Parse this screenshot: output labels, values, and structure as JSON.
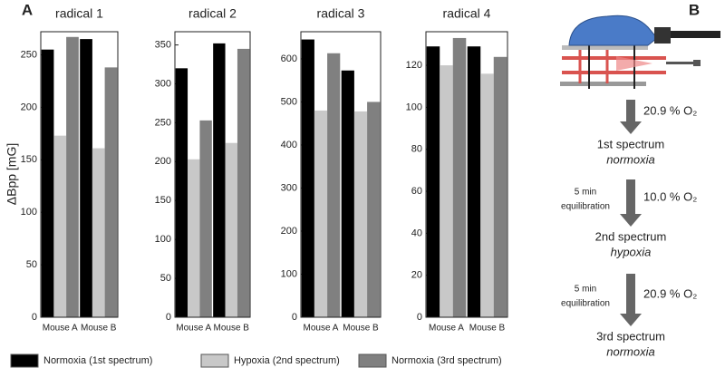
{
  "panel_labels": [
    "A",
    "B"
  ],
  "legend_note": null,
  "chart_data": [
    {
      "type": "bar",
      "title": "radical 1",
      "ylabel": "ΔBpp [mG]",
      "categories": [
        "Mouse A",
        "Mouse B"
      ],
      "series": [
        {
          "name": "Normoxia (1st spectrum)",
          "color": "#000000",
          "values": [
            255,
            265
          ]
        },
        {
          "name": "Hypoxia (2nd spectrum)",
          "color": "#c8c8c8",
          "values": [
            173,
            161
          ]
        },
        {
          "name": "Normoxia (3rd spectrum)",
          "color": "#808080",
          "values": [
            267,
            238
          ]
        }
      ],
      "ylim": [
        0,
        272
      ],
      "yticks": [
        0,
        50,
        100,
        150,
        200,
        250
      ]
    },
    {
      "type": "bar",
      "title": "radical 2",
      "categories": [
        "Mouse A",
        "Mouse B"
      ],
      "series": [
        {
          "color": "#000000",
          "values": [
            320,
            352
          ]
        },
        {
          "color": "#c8c8c8",
          "values": [
            203,
            224
          ]
        },
        {
          "color": "#808080",
          "values": [
            253,
            345
          ]
        }
      ],
      "ylim": [
        0,
        367
      ],
      "yticks": [
        0,
        50,
        100,
        150,
        200,
        250,
        300,
        350
      ]
    },
    {
      "type": "bar",
      "title": "radical 3",
      "categories": [
        "Mouse A",
        "Mouse B"
      ],
      "series": [
        {
          "color": "#000000",
          "values": [
            645,
            573
          ]
        },
        {
          "color": "#c8c8c8",
          "values": [
            480,
            478
          ]
        },
        {
          "color": "#808080",
          "values": [
            613,
            500
          ]
        }
      ],
      "ylim": [
        0,
        663
      ],
      "yticks": [
        0,
        100,
        200,
        300,
        400,
        500,
        600
      ]
    },
    {
      "type": "bar",
      "title": "radical 4",
      "categories": [
        "Mouse A",
        "Mouse B"
      ],
      "series": [
        {
          "color": "#000000",
          "values": [
            129,
            129
          ]
        },
        {
          "color": "#c8c8c8",
          "values": [
            120,
            116
          ]
        },
        {
          "color": "#808080",
          "values": [
            133,
            124
          ]
        }
      ],
      "ylim": [
        0,
        136
      ],
      "yticks": [
        0,
        20,
        40,
        60,
        80,
        100,
        120
      ]
    }
  ],
  "flow": {
    "steps": [
      {
        "title": "1st spectrum",
        "subtitle": "normoxia"
      },
      {
        "title": "2nd spectrum",
        "subtitle": "hypoxia"
      },
      {
        "title": "3rd spectrum",
        "subtitle": "normoxia"
      }
    ],
    "arrows": [
      {
        "label": "20.9 % O₂"
      },
      {
        "label": "10.0 % O₂",
        "side": [
          "5 min",
          "equilibration"
        ]
      },
      {
        "label": "20.9 % O₂",
        "side": [
          "5 min",
          "equilibration"
        ]
      }
    ]
  }
}
